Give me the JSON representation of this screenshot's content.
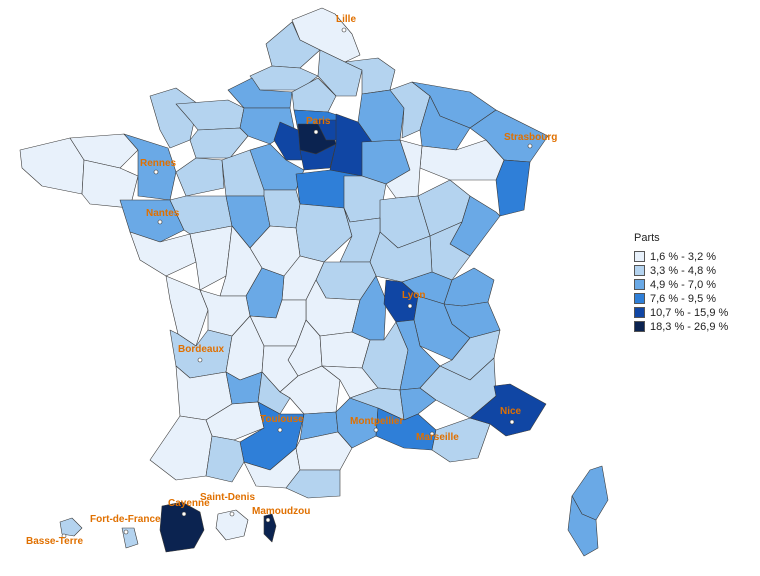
{
  "legend": {
    "title": "Parts",
    "classes": [
      {
        "label": "1,6 % - 3,2 %",
        "color": "#e8f1fb"
      },
      {
        "label": "3,3 % - 4,8 %",
        "color": "#b4d3ef"
      },
      {
        "label": "4,9 % - 7,0 %",
        "color": "#6aa9e6"
      },
      {
        "label": "7,6 % - 9,5 %",
        "color": "#2f7fd8"
      },
      {
        "label": "10,7 % - 15,9 %",
        "color": "#1046a4"
      },
      {
        "label": "18,3 % - 26,9 %",
        "color": "#0b2350"
      }
    ]
  },
  "cities": [
    "Lille",
    "Paris",
    "Strasbourg",
    "Rennes",
    "Nantes",
    "Lyon",
    "Bordeaux",
    "Toulouse",
    "Montpellier",
    "Marseille",
    "Nice",
    "Saint-Denis",
    "Cayenne",
    "Fort-de-France",
    "Mamoudzou",
    "Basse-Terre"
  ]
}
